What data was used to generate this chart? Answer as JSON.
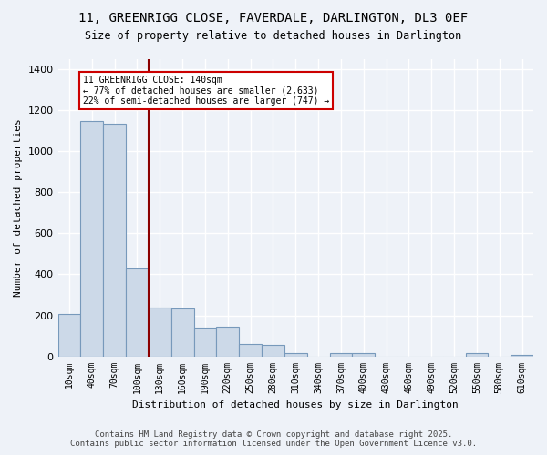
{
  "title_line1": "11, GREENRIGG CLOSE, FAVERDALE, DARLINGTON, DL3 0EF",
  "title_line2": "Size of property relative to detached houses in Darlington",
  "xlabel": "Distribution of detached houses by size in Darlington",
  "ylabel": "Number of detached properties",
  "bar_labels": [
    "10sqm",
    "40sqm",
    "70sqm",
    "100sqm",
    "130sqm",
    "160sqm",
    "190sqm",
    "220sqm",
    "250sqm",
    "280sqm",
    "310sqm",
    "340sqm",
    "370sqm",
    "400sqm",
    "430sqm",
    "460sqm",
    "490sqm",
    "520sqm",
    "550sqm",
    "580sqm",
    "610sqm"
  ],
  "bar_values": [
    207,
    1150,
    1135,
    430,
    240,
    235,
    140,
    145,
    60,
    57,
    18,
    0,
    14,
    14,
    0,
    0,
    0,
    0,
    14,
    0,
    7
  ],
  "bar_color": "#ccd9e8",
  "bar_edgecolor": "#7799bb",
  "vline_x": 3.5,
  "vline_color": "#8b0000",
  "annotation_text": "11 GREENRIGG CLOSE: 140sqm\n← 77% of detached houses are smaller (2,633)\n22% of semi-detached houses are larger (747) →",
  "annotation_box_color": "#ffffff",
  "annotation_box_edgecolor": "#cc0000",
  "ylim": [
    0,
    1450
  ],
  "yticks": [
    0,
    200,
    400,
    600,
    800,
    1000,
    1200,
    1400
  ],
  "bg_color": "#eef2f8",
  "grid_color": "#ffffff",
  "footer_line1": "Contains HM Land Registry data © Crown copyright and database right 2025.",
  "footer_line2": "Contains public sector information licensed under the Open Government Licence v3.0."
}
